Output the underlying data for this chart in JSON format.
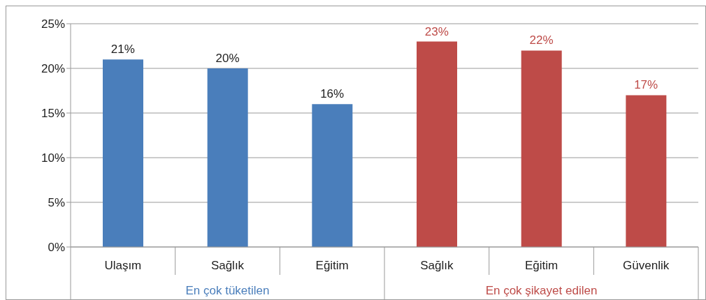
{
  "chart_data": {
    "type": "bar",
    "categories": [
      "Ulaşım",
      "Sağlık",
      "Eğitim",
      "Sağlık",
      "Eğitim",
      "Güvenlik"
    ],
    "series": [
      {
        "name": "En çok tüketilen",
        "color": "#4a7ebb",
        "values": [
          21,
          20,
          16,
          null,
          null,
          null
        ],
        "value_labels": [
          "21%",
          "20%",
          "16%",
          null,
          null,
          null
        ]
      },
      {
        "name": "En çok şikayet edilen",
        "color": "#be4b48",
        "values": [
          null,
          null,
          null,
          23,
          22,
          17
        ],
        "value_labels": [
          null,
          null,
          null,
          "23%",
          "22%",
          "17%"
        ]
      }
    ],
    "ylim": [
      0,
      25
    ],
    "yticks": [
      {
        "value": 0,
        "label": "0%"
      },
      {
        "value": 5,
        "label": "5%"
      },
      {
        "value": 10,
        "label": "10%"
      },
      {
        "value": 15,
        "label": "15%"
      },
      {
        "value": 20,
        "label": "20%"
      },
      {
        "value": 25,
        "label": "25%"
      }
    ],
    "grid": "y",
    "legend": false
  }
}
